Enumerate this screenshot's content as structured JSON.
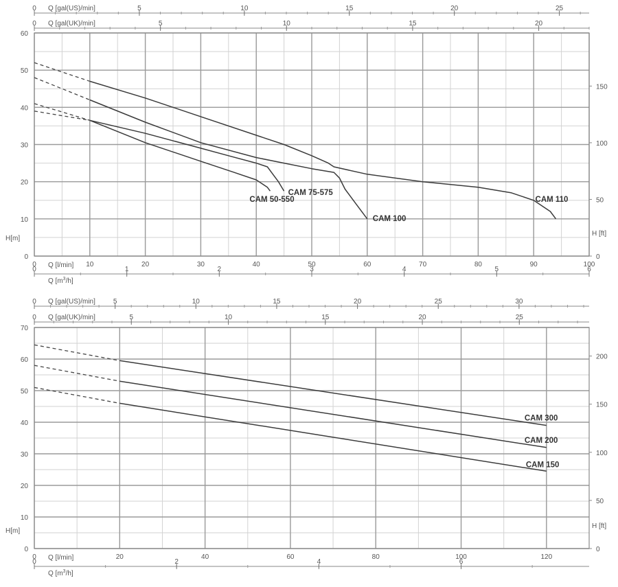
{
  "chart_data": [
    {
      "type": "line",
      "x": {
        "label": "Q [l/min]",
        "lim": [
          0,
          100
        ],
        "ticks": [
          "0",
          "10",
          "20",
          "30",
          "40",
          "50",
          "60",
          "70",
          "80",
          "90",
          "100"
        ]
      },
      "x_alt": [
        {
          "label": "Q [gal(US)/min]",
          "lim": [
            0,
            26.42
          ],
          "ticks": [
            "0",
            "5",
            "10",
            "15",
            "20",
            "25"
          ]
        },
        {
          "label": "Q [gal(UK)/min]",
          "lim": [
            0,
            22.0
          ],
          "ticks": [
            "0",
            "5",
            "10",
            "15",
            "20"
          ]
        },
        {
          "label": "Q [m³/h]",
          "label_pre": "Q [m",
          "label_sup": "3",
          "label_post": "/h]",
          "lim": [
            0,
            6
          ],
          "ticks": [
            "0",
            "1",
            "2",
            "3",
            "4",
            "5",
            "6"
          ]
        }
      ],
      "y": {
        "label": "H[m]",
        "lim": [
          0,
          60
        ],
        "ticks": [
          "0",
          "10",
          "20",
          "30",
          "40",
          "50",
          "60"
        ]
      },
      "y_right": {
        "label": "H [ft]",
        "lim": [
          0,
          196.85
        ],
        "ticks": [
          "0",
          "50",
          "100",
          "150"
        ]
      },
      "grid": true,
      "series": [
        {
          "name": "CAM 50-550",
          "dashed": [
            [
              0,
              39
            ],
            [
              10,
              36.5
            ]
          ],
          "points": [
            [
              10,
              36.5
            ],
            [
              20,
              30.5
            ],
            [
              30,
              25.5
            ],
            [
              36,
              22.5
            ],
            [
              40,
              20.5
            ],
            [
              42,
              18.5
            ],
            [
              42.5,
              17.5
            ]
          ]
        },
        {
          "name": "CAM 75-575",
          "dashed": [
            [
              0,
              41
            ],
            [
              10,
              36.5
            ]
          ],
          "points": [
            [
              10,
              36.5
            ],
            [
              20,
              33
            ],
            [
              30,
              29
            ],
            [
              35,
              27
            ],
            [
              40,
              25
            ],
            [
              42,
              24
            ],
            [
              43,
              22
            ],
            [
              44,
              20
            ],
            [
              45,
              17.5
            ]
          ]
        },
        {
          "name": "CAM 100",
          "dashed": [
            [
              0,
              48
            ],
            [
              10,
              42
            ]
          ],
          "points": [
            [
              10,
              42
            ],
            [
              20,
              36
            ],
            [
              30,
              30.5
            ],
            [
              40,
              26.5
            ],
            [
              45,
              25
            ],
            [
              50,
              23.5
            ],
            [
              54,
              22.5
            ],
            [
              55,
              21
            ],
            [
              56,
              18
            ],
            [
              58,
              14
            ],
            [
              60,
              10
            ]
          ]
        },
        {
          "name": "CAM 110",
          "dashed": [
            [
              0,
              52
            ],
            [
              10,
              47
            ]
          ],
          "points": [
            [
              10,
              47
            ],
            [
              20,
              42.5
            ],
            [
              30,
              37.5
            ],
            [
              40,
              32.5
            ],
            [
              45,
              30
            ],
            [
              50,
              27
            ],
            [
              53,
              25
            ],
            [
              54,
              24
            ],
            [
              60,
              22
            ],
            [
              70,
              20
            ],
            [
              80,
              18.5
            ],
            [
              86,
              17
            ],
            [
              90,
              15
            ],
            [
              93,
              12
            ],
            [
              94,
              10
            ]
          ]
        }
      ]
    },
    {
      "type": "line",
      "x": {
        "label": "Q [l/min]",
        "lim": [
          0,
          130
        ],
        "ticks": [
          "0",
          "20",
          "40",
          "60",
          "80",
          "100",
          "120"
        ]
      },
      "x_alt": [
        {
          "label": "Q [gal(US)/min]",
          "lim": [
            0,
            34.34
          ],
          "ticks": [
            "0",
            "5",
            "10",
            "15",
            "20",
            "25",
            "30"
          ]
        },
        {
          "label": "Q [gal(UK)/min]",
          "lim": [
            0,
            28.6
          ],
          "ticks": [
            "0",
            "5",
            "10",
            "15",
            "20",
            "25"
          ]
        },
        {
          "label": "Q [m³/h]",
          "label_pre": "Q [m",
          "label_sup": "3",
          "label_post": "/h]",
          "lim": [
            0,
            7.8
          ],
          "ticks": [
            "0",
            "2",
            "4",
            "6"
          ]
        }
      ],
      "y": {
        "label": "H[m]",
        "lim": [
          0,
          70
        ],
        "ticks": [
          "0",
          "10",
          "20",
          "30",
          "40",
          "50",
          "60",
          "70"
        ]
      },
      "y_right": {
        "label": "H [ft]",
        "lim": [
          0,
          229.66
        ],
        "ticks": [
          "0",
          "50",
          "100",
          "150",
          "200"
        ]
      },
      "grid": true,
      "series": [
        {
          "name": "CAM 300",
          "dashed": [
            [
              0,
              64.5
            ],
            [
              20,
              59.5
            ]
          ],
          "points": [
            [
              20,
              59.5
            ],
            [
              120,
              39
            ]
          ]
        },
        {
          "name": "CAM 200",
          "dashed": [
            [
              0,
              58
            ],
            [
              20,
              53
            ]
          ],
          "points": [
            [
              20,
              53
            ],
            [
              120,
              32
            ]
          ]
        },
        {
          "name": "CAM 150",
          "dashed": [
            [
              0,
              51
            ],
            [
              20,
              46
            ]
          ],
          "points": [
            [
              20,
              46
            ],
            [
              120,
              24.5
            ]
          ]
        }
      ]
    }
  ]
}
